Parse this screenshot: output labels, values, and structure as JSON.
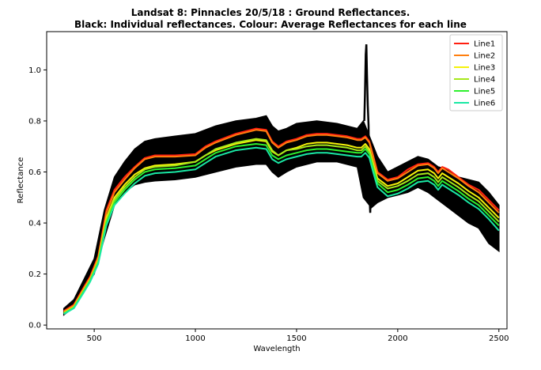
{
  "chart_data": {
    "type": "line",
    "title_line1": "Landsat 8: Pinnacles 20/5/18 : Ground Reflectances.",
    "title_line2": "Black: Individual reflectances. Colour: Average Reflectances for each line",
    "xlabel": "Wavelength",
    "ylabel": "Reflectance",
    "xlim": [
      265,
      2540
    ],
    "ylim": [
      -0.015,
      1.15
    ],
    "xticks": [
      500,
      1000,
      1500,
      2000,
      2500
    ],
    "yticks": [
      0.0,
      0.2,
      0.4,
      0.6,
      0.8,
      1.0
    ],
    "xtick_labels": [
      "500",
      "1000",
      "1500",
      "2000",
      "2500"
    ],
    "ytick_labels": [
      "0.0",
      "0.2",
      "0.4",
      "0.6",
      "0.8",
      "1.0"
    ],
    "legend_position": "top-right",
    "grid": false,
    "envelope": {
      "color": "#000000",
      "x": [
        350,
        400,
        450,
        500,
        550,
        600,
        650,
        700,
        750,
        800,
        900,
        1000,
        1100,
        1200,
        1300,
        1350,
        1380,
        1410,
        1450,
        1500,
        1600,
        1700,
        1800,
        1830,
        1870,
        1900,
        1950,
        2000,
        2050,
        2100,
        2150,
        2200,
        2250,
        2300,
        2350,
        2400,
        2450,
        2500
      ],
      "upper": [
        0.065,
        0.1,
        0.18,
        0.26,
        0.45,
        0.58,
        0.64,
        0.69,
        0.72,
        0.73,
        0.74,
        0.75,
        0.78,
        0.8,
        0.81,
        0.82,
        0.78,
        0.76,
        0.77,
        0.79,
        0.8,
        0.79,
        0.77,
        0.8,
        0.72,
        0.66,
        0.6,
        0.62,
        0.64,
        0.66,
        0.65,
        0.62,
        0.61,
        0.58,
        0.57,
        0.56,
        0.52,
        0.47
      ],
      "lower": [
        0.04,
        0.07,
        0.14,
        0.2,
        0.34,
        0.47,
        0.52,
        0.55,
        0.56,
        0.565,
        0.57,
        0.58,
        0.6,
        0.62,
        0.63,
        0.63,
        0.6,
        0.58,
        0.6,
        0.62,
        0.64,
        0.64,
        0.62,
        0.5,
        0.46,
        0.48,
        0.5,
        0.51,
        0.52,
        0.54,
        0.52,
        0.49,
        0.46,
        0.43,
        0.4,
        0.38,
        0.32,
        0.29
      ]
    },
    "spike": {
      "x": [
        1835,
        1838,
        1842,
        1845,
        1848,
        1852,
        1856,
        1860,
        1864,
        1868,
        1872
      ],
      "y": [
        0.8,
        0.9,
        1.06,
        1.1,
        0.98,
        0.86,
        0.78,
        0.52,
        0.44,
        0.56,
        0.48
      ]
    },
    "x": [
      350,
      400,
      450,
      480,
      520,
      560,
      600,
      650,
      700,
      750,
      800,
      900,
      1000,
      1050,
      1100,
      1200,
      1300,
      1350,
      1380,
      1410,
      1450,
      1500,
      1550,
      1600,
      1650,
      1700,
      1750,
      1800,
      1820,
      1840,
      1860,
      1880,
      1900,
      1950,
      2000,
      2050,
      2100,
      2150,
      2180,
      2200,
      2220,
      2250,
      2300,
      2350,
      2400,
      2450,
      2500
    ],
    "series": [
      {
        "name": "Line1",
        "color": "#ff1f10",
        "values": [
          0.055,
          0.08,
          0.15,
          0.19,
          0.27,
          0.45,
          0.53,
          0.58,
          0.62,
          0.655,
          0.665,
          0.665,
          0.67,
          0.7,
          0.72,
          0.75,
          0.77,
          0.765,
          0.72,
          0.7,
          0.72,
          0.73,
          0.745,
          0.75,
          0.75,
          0.745,
          0.74,
          0.73,
          0.73,
          0.74,
          0.72,
          0.66,
          0.6,
          0.57,
          0.58,
          0.61,
          0.63,
          0.635,
          0.62,
          0.6,
          0.62,
          0.61,
          0.58,
          0.55,
          0.53,
          0.49,
          0.45
        ]
      },
      {
        "name": "Line2",
        "color": "#ff7f0e",
        "values": [
          0.052,
          0.077,
          0.145,
          0.185,
          0.265,
          0.44,
          0.52,
          0.57,
          0.615,
          0.65,
          0.66,
          0.66,
          0.665,
          0.695,
          0.715,
          0.745,
          0.765,
          0.76,
          0.715,
          0.695,
          0.715,
          0.725,
          0.74,
          0.745,
          0.745,
          0.74,
          0.735,
          0.725,
          0.725,
          0.735,
          0.715,
          0.655,
          0.595,
          0.565,
          0.575,
          0.6,
          0.625,
          0.63,
          0.615,
          0.595,
          0.615,
          0.6,
          0.575,
          0.545,
          0.52,
          0.48,
          0.44
        ]
      },
      {
        "name": "Line3",
        "color": "#f5f20a",
        "values": [
          0.048,
          0.072,
          0.14,
          0.18,
          0.255,
          0.42,
          0.5,
          0.55,
          0.59,
          0.615,
          0.625,
          0.63,
          0.64,
          0.665,
          0.685,
          0.71,
          0.725,
          0.72,
          0.68,
          0.665,
          0.685,
          0.695,
          0.71,
          0.715,
          0.715,
          0.71,
          0.705,
          0.695,
          0.695,
          0.71,
          0.69,
          0.63,
          0.575,
          0.545,
          0.555,
          0.58,
          0.605,
          0.61,
          0.595,
          0.575,
          0.595,
          0.58,
          0.555,
          0.525,
          0.5,
          0.46,
          0.42
        ]
      },
      {
        "name": "Line4",
        "color": "#a6e81a",
        "values": [
          0.046,
          0.07,
          0.137,
          0.177,
          0.25,
          0.41,
          0.49,
          0.54,
          0.58,
          0.61,
          0.62,
          0.625,
          0.64,
          0.665,
          0.69,
          0.715,
          0.73,
          0.725,
          0.685,
          0.665,
          0.685,
          0.69,
          0.7,
          0.705,
          0.705,
          0.7,
          0.695,
          0.685,
          0.685,
          0.7,
          0.68,
          0.62,
          0.565,
          0.535,
          0.545,
          0.565,
          0.59,
          0.595,
          0.58,
          0.56,
          0.58,
          0.565,
          0.54,
          0.51,
          0.485,
          0.445,
          0.405
        ]
      },
      {
        "name": "Line5",
        "color": "#2ef02e",
        "values": [
          0.045,
          0.068,
          0.134,
          0.174,
          0.245,
          0.4,
          0.48,
          0.53,
          0.57,
          0.6,
          0.61,
          0.615,
          0.625,
          0.65,
          0.675,
          0.7,
          0.71,
          0.705,
          0.665,
          0.65,
          0.665,
          0.675,
          0.685,
          0.69,
          0.69,
          0.685,
          0.68,
          0.675,
          0.675,
          0.69,
          0.67,
          0.61,
          0.555,
          0.52,
          0.53,
          0.55,
          0.575,
          0.58,
          0.565,
          0.545,
          0.565,
          0.55,
          0.525,
          0.495,
          0.47,
          0.43,
          0.39
        ]
      },
      {
        "name": "Line6",
        "color": "#19e8a4",
        "values": [
          0.043,
          0.066,
          0.13,
          0.17,
          0.24,
          0.39,
          0.47,
          0.515,
          0.555,
          0.585,
          0.595,
          0.6,
          0.61,
          0.635,
          0.66,
          0.685,
          0.695,
          0.69,
          0.65,
          0.635,
          0.65,
          0.66,
          0.67,
          0.675,
          0.675,
          0.67,
          0.665,
          0.66,
          0.66,
          0.675,
          0.655,
          0.595,
          0.54,
          0.505,
          0.515,
          0.535,
          0.56,
          0.565,
          0.55,
          0.53,
          0.55,
          0.535,
          0.51,
          0.48,
          0.455,
          0.415,
          0.37
        ]
      }
    ]
  }
}
